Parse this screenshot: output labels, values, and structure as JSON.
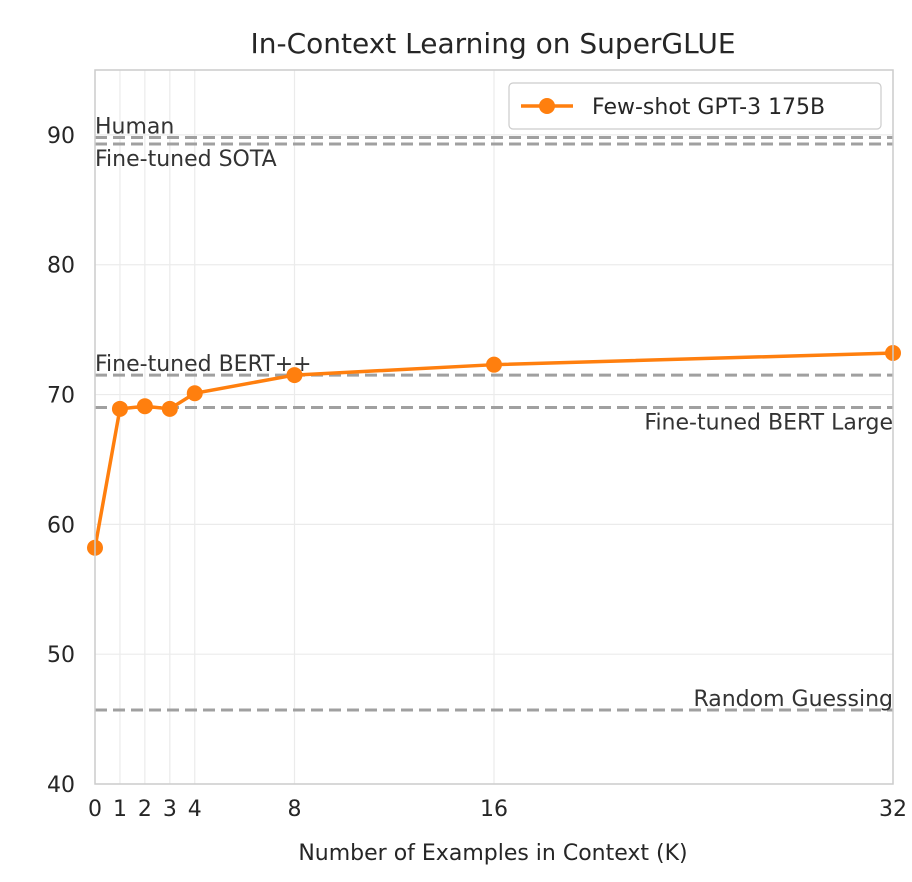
{
  "chart_data": {
    "type": "line",
    "title": "In-Context Learning on SuperGLUE",
    "xlabel": "Number of Examples in Context (K)",
    "ylabel": "",
    "xlim": [
      0,
      32
    ],
    "ylim": [
      40,
      95
    ],
    "x_ticks": [
      0,
      1,
      2,
      3,
      4,
      8,
      16,
      32
    ],
    "y_ticks": [
      40,
      50,
      60,
      70,
      80,
      90
    ],
    "grid": true,
    "legend_position": "top-right",
    "series": [
      {
        "name": "Few-shot GPT-3 175B",
        "color": "#ff7f0e",
        "marker": "circle",
        "x": [
          0,
          1,
          2,
          3,
          4,
          8,
          16,
          32
        ],
        "y": [
          58.2,
          68.9,
          69.1,
          68.9,
          70.1,
          71.5,
          72.3,
          73.2
        ]
      }
    ],
    "reference_lines": [
      {
        "label": "Human",
        "value": 89.8,
        "label_align": "left",
        "label_pos": "above"
      },
      {
        "label": "Fine-tuned SOTA",
        "value": 89.3,
        "label_align": "left",
        "label_pos": "below"
      },
      {
        "label": "Fine-tuned BERT++",
        "value": 71.5,
        "label_align": "left",
        "label_pos": "above"
      },
      {
        "label": "Fine-tuned BERT Large",
        "value": 69.0,
        "label_align": "right",
        "label_pos": "below"
      },
      {
        "label": "Random Guessing",
        "value": 45.7,
        "label_align": "right",
        "label_pos": "above"
      }
    ],
    "reference_line_color": "#a0a0a0"
  }
}
